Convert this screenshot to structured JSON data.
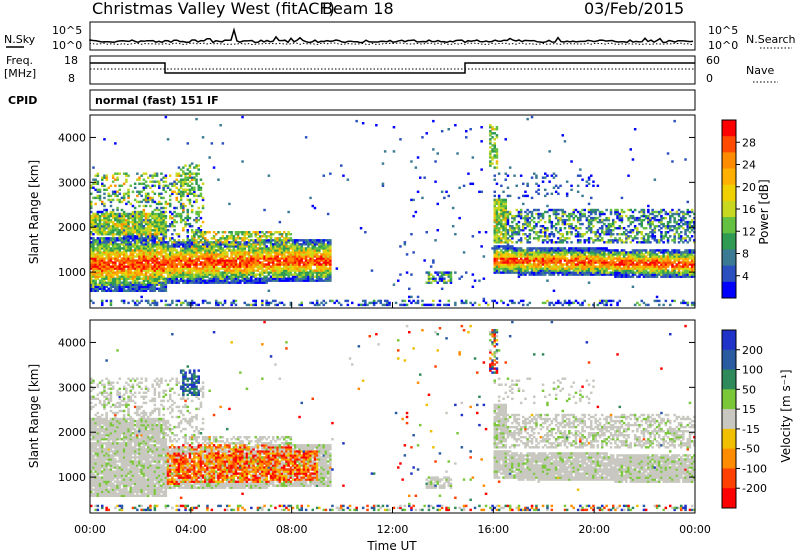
{
  "header": {
    "title": "Christmas Valley West (fitACF)",
    "beam": "Beam 18",
    "date": "03/Feb/2015"
  },
  "noise_panel": {
    "left_label": "N.Sky",
    "right_label": "N.Search",
    "ticks_left": [
      "10^5",
      "10^0"
    ],
    "ticks_right": [
      "10^5",
      "10^0"
    ]
  },
  "freq_panel": {
    "left_label_1": "Freq.",
    "left_label_2": "[MHz]",
    "right_label": "Nave",
    "ticks_left": [
      "18",
      "8"
    ],
    "ticks_right": [
      "60",
      "0"
    ]
  },
  "cpid": {
    "label": "CPID",
    "value": "normal (fast) 151 IF"
  },
  "chart_data": [
    {
      "type": "heatmap",
      "name": "power",
      "ylabel": "Slant Range [km]",
      "y_ticks": [
        "1000",
        "2000",
        "3000",
        "4000"
      ],
      "ylim": [
        200,
        4500
      ],
      "xlim": [
        0,
        24
      ],
      "colorbar_label": "Power [dB]",
      "colorbar_ticks": [
        "28",
        "24",
        "20",
        "16",
        "12",
        "8",
        "4"
      ],
      "colorbar_colors": [
        "#ff0000",
        "#ff4a00",
        "#ff8c00",
        "#ffb000",
        "#f0d000",
        "#c8d820",
        "#64c040",
        "#2e9a52",
        "#3a7a92",
        "#2a50c0",
        "#0000ff"
      ]
    },
    {
      "type": "heatmap",
      "name": "velocity",
      "ylabel": "Slant Range [km]",
      "y_ticks": [
        "1000",
        "2000",
        "3000",
        "4000"
      ],
      "ylim": [
        200,
        4500
      ],
      "xlim": [
        0,
        24
      ],
      "colorbar_label": "Velocity [m s⁻¹]",
      "colorbar_ticks": [
        "200",
        "100",
        "50",
        "15",
        "-15",
        "-50",
        "-100",
        "-200"
      ],
      "colorbar_colors": [
        "#1f33c8",
        "#2a5aa0",
        "#2e8a5a",
        "#7ac83a",
        "#c8c8c0",
        "#f0c000",
        "#ff8c00",
        "#ff4000",
        "#ff0000"
      ]
    }
  ],
  "x_axis": {
    "label": "Time UT",
    "ticks": [
      "00:00",
      "04:00",
      "08:00",
      "12:00",
      "16:00",
      "20:00",
      "00:00"
    ]
  }
}
